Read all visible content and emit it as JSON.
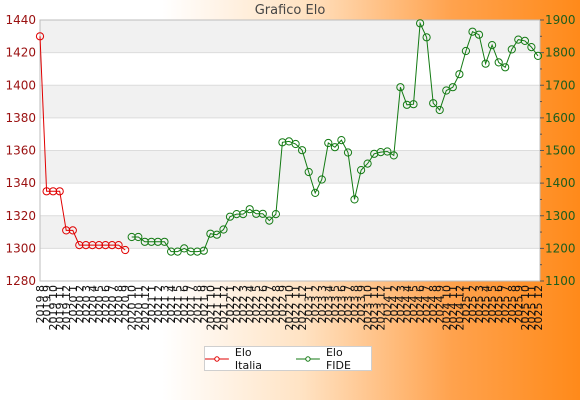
{
  "chart_data": {
    "type": "line",
    "title": "Grafico Elo",
    "left_axis": {
      "ylim": [
        1280,
        1440
      ],
      "ticks": [
        1280,
        1300,
        1320,
        1340,
        1360,
        1380,
        1400,
        1420,
        1440
      ],
      "color": "#c00000"
    },
    "right_axis": {
      "ylim": [
        1100,
        1900
      ],
      "ticks": [
        1100,
        1200,
        1300,
        1400,
        1500,
        1600,
        1700,
        1800,
        1900
      ],
      "color": "#1a7a1a"
    },
    "x_labels": [
      "2019 8",
      "2019 9",
      "2019 10",
      "2019 11",
      "2019 12",
      "2020 1",
      "2020 2",
      "2020 3",
      "2020 4",
      "2020 5",
      "2020 6",
      "2020 7",
      "2020 8",
      "2020 9",
      "2020 10",
      "2020 11",
      "2020 12",
      "2021 1",
      "2021 2",
      "2021 3",
      "2021 4",
      "2021 5",
      "2021 6",
      "2021 7",
      "2021 8",
      "2021 9",
      "2021 10",
      "2021 11",
      "2021 12",
      "2022 1",
      "2022 2",
      "2022 3",
      "2022 4",
      "2022 5",
      "2022 6",
      "2022 7",
      "2022 8",
      "2022 9",
      "2022 10",
      "2022 11",
      "2022 12",
      "2023 1",
      "2023 2",
      "2023 3",
      "2023 4",
      "2023 5",
      "2023 6",
      "2023 7",
      "2023 8",
      "2023 9",
      "2023 10",
      "2023 11",
      "2023 12",
      "2024 1",
      "2024 2",
      "2024 3",
      "2024 4",
      "2024 5",
      "2024 6",
      "2024 7",
      "2024 8",
      "2024 9",
      "2024 10",
      "2024 11",
      "2024 12",
      "2025 1",
      "2025 2",
      "2025 3",
      "2025 4",
      "2025 5",
      "2025 6",
      "2025 7",
      "2025 8",
      "2025 9",
      "2025 10",
      "2025 11",
      "2025 12"
    ],
    "grid": true,
    "legend_position": "bottom-center",
    "series": [
      {
        "name": "Elo Italia",
        "axis": "left",
        "color": "#e00000",
        "values": [
          1430,
          1335,
          1335,
          1335,
          1311,
          1311,
          1302,
          1302,
          1302,
          1302,
          1302,
          1302,
          1302,
          1299
        ]
      },
      {
        "name": "Elo FIDE",
        "axis": "right",
        "color": "#137a13",
        "values": [
          null,
          null,
          null,
          null,
          null,
          null,
          null,
          null,
          null,
          null,
          null,
          null,
          null,
          null,
          1235,
          1235,
          1220,
          1220,
          1220,
          1220,
          1190,
          1190,
          1200,
          1190,
          1190,
          1193,
          1245,
          1242,
          1258,
          1297,
          1305,
          1305,
          1320,
          1306,
          1306,
          1285,
          1305,
          1525,
          1528,
          1520,
          1501,
          1434,
          1370,
          1411,
          1523,
          1510,
          1532,
          1494,
          1350,
          1440,
          1460,
          1490,
          1495,
          1497,
          1485,
          1694,
          1640,
          1642,
          1890,
          1847,
          1645,
          1624,
          1684,
          1694,
          1734,
          1805,
          1864,
          1855,
          1766,
          1823,
          1770,
          1755,
          1810,
          1840,
          1836,
          1817,
          1790
        ]
      }
    ]
  }
}
